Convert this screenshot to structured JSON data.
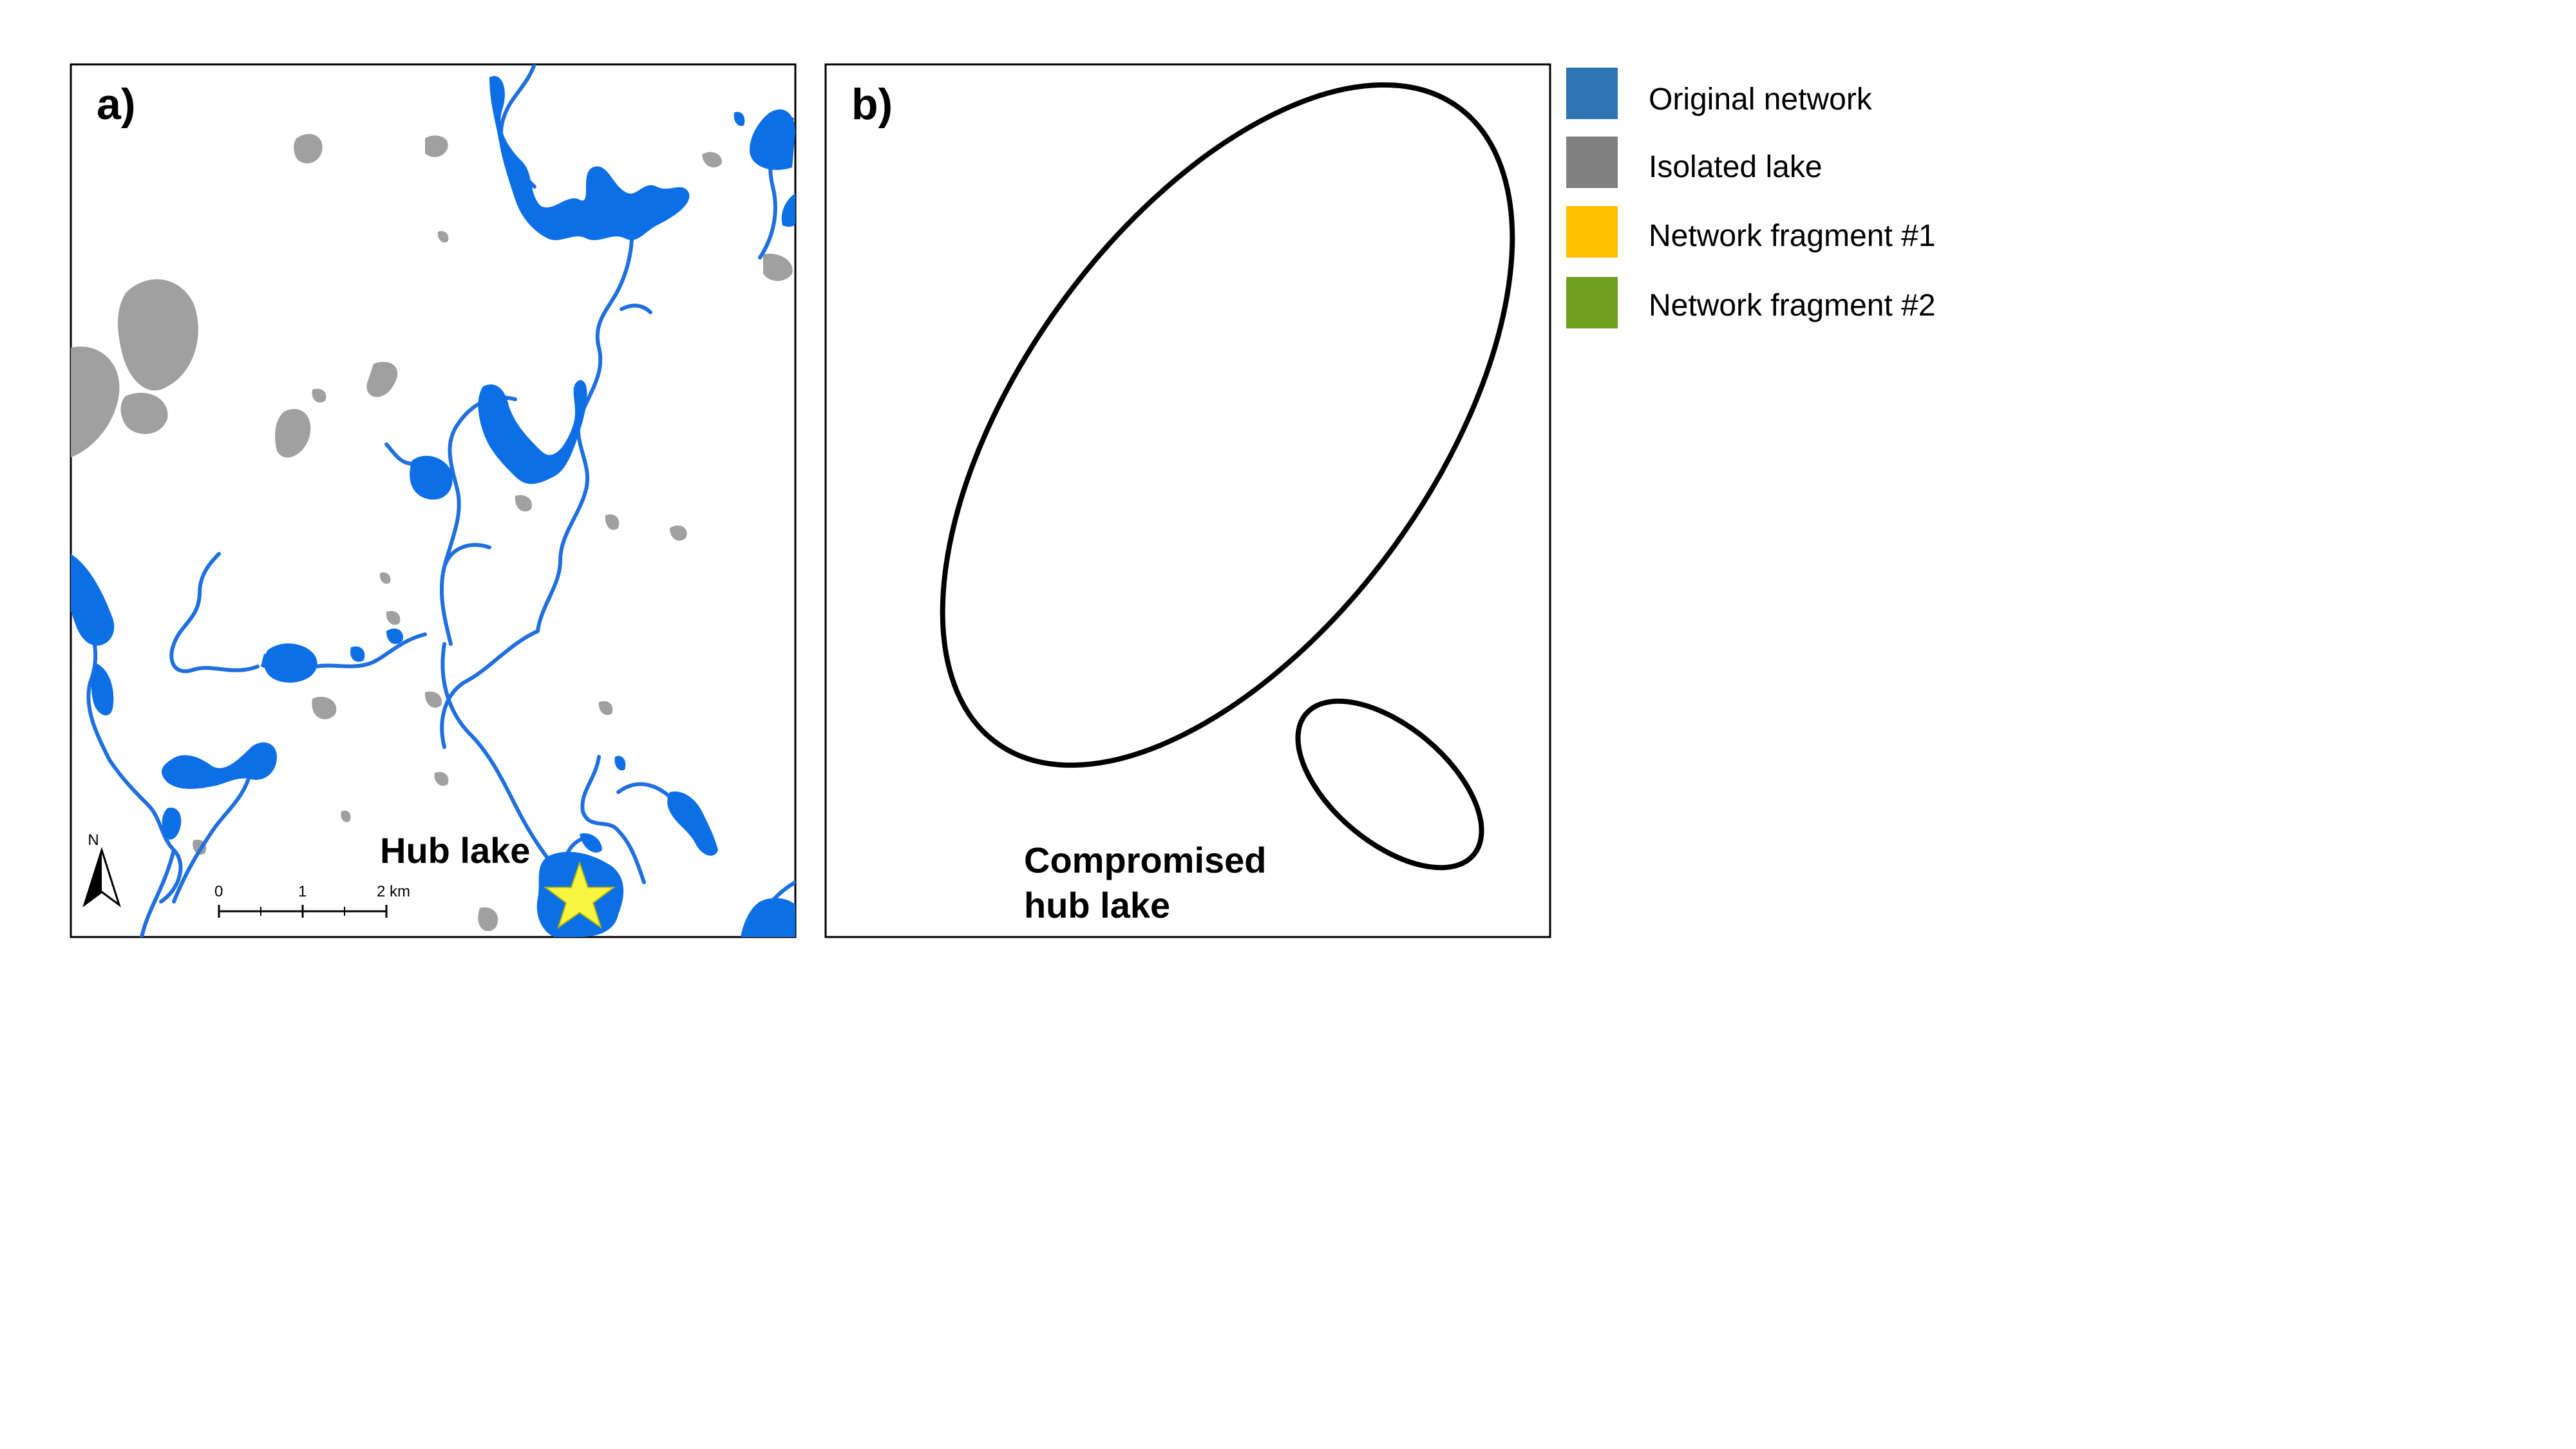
{
  "panels": {
    "a": {
      "label": "a)",
      "hub_label": "Hub lake"
    },
    "b": {
      "label": "b)",
      "hub_label_line1": "Compromised",
      "hub_label_line2": "hub lake"
    }
  },
  "north_arrow": {
    "label": "N"
  },
  "scale_bar": {
    "ticks": [
      "0",
      "1",
      "2 km"
    ]
  },
  "legend": {
    "items": [
      {
        "label": "Original network",
        "color": "#2f75b5"
      },
      {
        "label": "Isolated lake",
        "color": "#808080"
      },
      {
        "label": "Network fragment #1",
        "color": "#ffc000"
      },
      {
        "label": "Network fragment #2",
        "color": "#70a020"
      }
    ]
  },
  "colors": {
    "network_lake": "#0d6fe6",
    "network_stream": "#1f6fe0",
    "isolated_lake": "#a0a0a0",
    "severed_stream": "#8c8c8c",
    "fragment_1": "#f0a818",
    "fragment_2": "#70a020",
    "hub_star": "#f5f542",
    "blocked_symbol": "#e0202a"
  }
}
